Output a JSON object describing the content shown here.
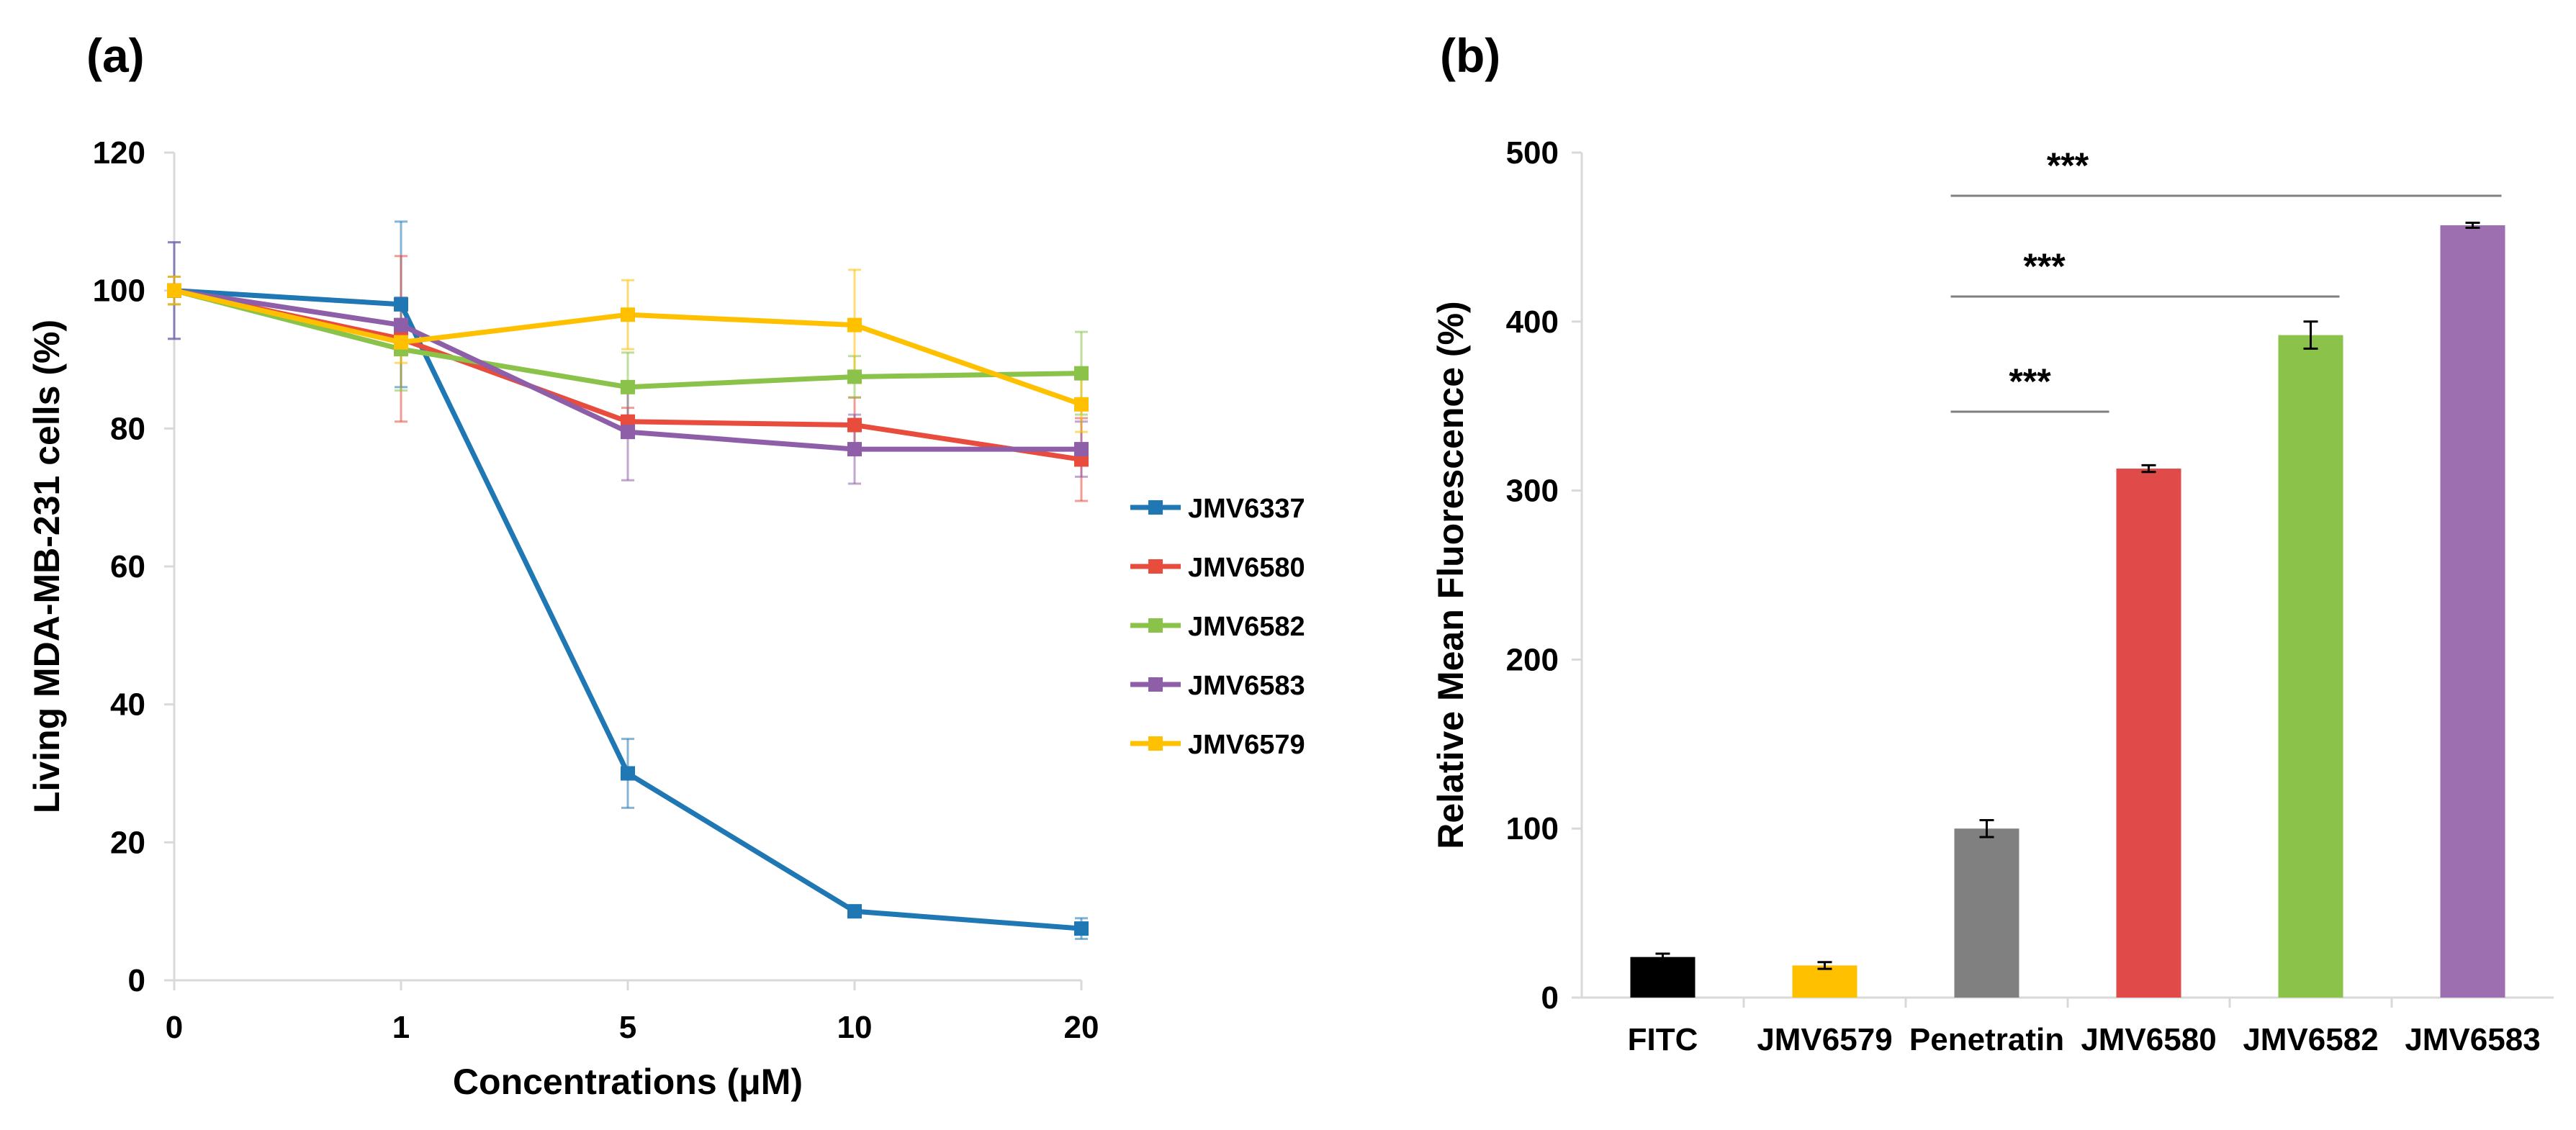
{
  "chart_data": [
    {
      "panel": "(a)",
      "type": "line",
      "title": "",
      "xlabel": "Concentrations (μM)",
      "ylabel": "Living MDA-MB-231 cells (%)",
      "categories": [
        "0",
        "1",
        "5",
        "10",
        "20"
      ],
      "ylim": [
        0,
        120
      ],
      "yticks": [
        0,
        20,
        40,
        60,
        80,
        100,
        120
      ],
      "legend_position": "right",
      "series": [
        {
          "name": "JMV6337",
          "color": "#1f77b4",
          "values": [
            100,
            98,
            30,
            10,
            7.5
          ],
          "errors": [
            7,
            12,
            5,
            0.8,
            1.5
          ]
        },
        {
          "name": "JMV6580",
          "color": "#e74c3c",
          "values": [
            100,
            93,
            81,
            80.5,
            75.5
          ],
          "errors": [
            2,
            12,
            2,
            4,
            6
          ]
        },
        {
          "name": "JMV6582",
          "color": "#8bc34a",
          "values": [
            100,
            91.5,
            86,
            87.5,
            88
          ],
          "errors": [
            2,
            6,
            5,
            3,
            6
          ]
        },
        {
          "name": "JMV6583",
          "color": "#8e5fa8",
          "values": [
            100,
            95,
            79.5,
            77,
            77
          ],
          "errors": [
            7,
            4,
            7,
            5,
            4
          ]
        },
        {
          "name": "JMV6579",
          "color": "#ffc000",
          "values": [
            100,
            92.5,
            96.5,
            95,
            83.5
          ],
          "errors": [
            2,
            3,
            5,
            8,
            4
          ]
        }
      ]
    },
    {
      "panel": "(b)",
      "type": "bar",
      "title": "",
      "xlabel": "",
      "ylabel": "Relative Mean Fluorescence  (%)",
      "categories": [
        "FITC",
        "JMV6579",
        "Penetratin",
        "JMV6580",
        "JMV6582",
        "JMV6583"
      ],
      "values": [
        24,
        19,
        100,
        313,
        392,
        457
      ],
      "errors": [
        2,
        2,
        5,
        2,
        8,
        1.5
      ],
      "colors": [
        "#000000",
        "#ffc000",
        "#808080",
        "#e04b4a",
        "#8bc34a",
        "#9e6fb0"
      ],
      "ylim": [
        0,
        500
      ],
      "yticks": [
        0,
        100,
        200,
        300,
        400,
        500
      ],
      "significance": [
        {
          "from": "Penetratin",
          "to": "JMV6580",
          "label": "***"
        },
        {
          "from": "Penetratin",
          "to": "JMV6582",
          "label": "***"
        },
        {
          "from": "Penetratin",
          "to": "JMV6583",
          "label": "***"
        }
      ]
    }
  ]
}
